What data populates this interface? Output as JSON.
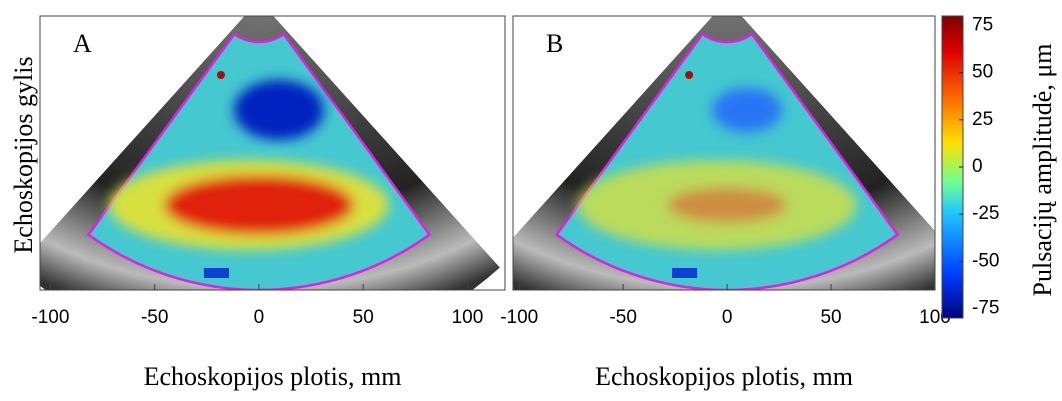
{
  "y_label": "Echoskopijos gylis",
  "panels": [
    {
      "label": "A",
      "x_label": "Echoskopijos plotis, mm",
      "xlim": [
        -105,
        118
      ],
      "xticks": [
        -100,
        -50,
        0,
        50,
        100
      ]
    },
    {
      "label": "B",
      "x_label": "Echoskopijos plotis, mm",
      "xlim": [
        -103,
        100
      ],
      "xticks": [
        -100,
        -50,
        0,
        50,
        100
      ]
    }
  ],
  "colorbar": {
    "label": "Pulsacijų amplitudė, μm",
    "lim": [
      -80,
      80
    ],
    "ticks": [
      75,
      50,
      25,
      0,
      -25,
      -50,
      -75
    ]
  }
}
